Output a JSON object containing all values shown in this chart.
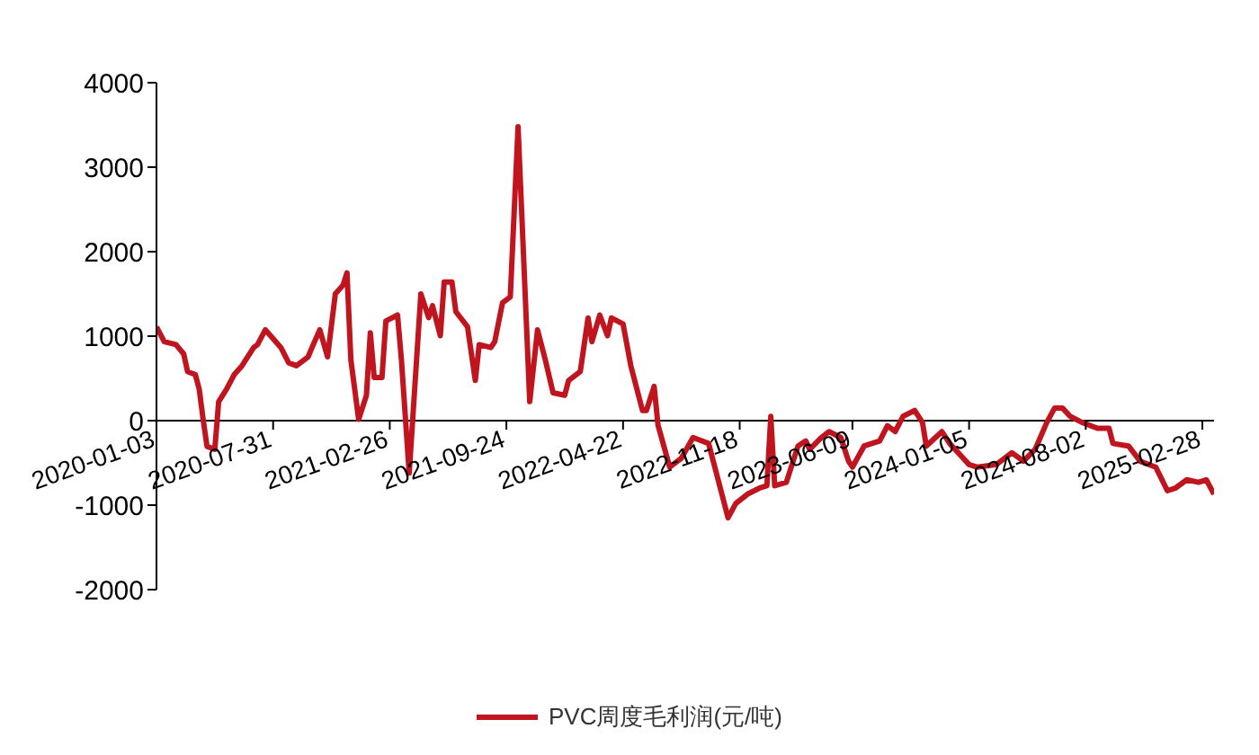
{
  "chart_data": {
    "type": "line",
    "x": [
      "2020-01-03",
      "2020-01-17",
      "2020-02-07",
      "2020-02-21",
      "2020-02-28",
      "2020-03-13",
      "2020-03-20",
      "2020-03-27",
      "2020-04-03",
      "2020-04-17",
      "2020-04-24",
      "2020-05-08",
      "2020-05-22",
      "2020-06-05",
      "2020-06-26",
      "2020-07-03",
      "2020-07-17",
      "2020-07-31",
      "2020-08-14",
      "2020-08-28",
      "2020-09-11",
      "2020-10-02",
      "2020-10-09",
      "2020-10-23",
      "2020-11-06",
      "2020-11-20",
      "2020-12-04",
      "2020-12-11",
      "2020-12-18",
      "2021-01-01",
      "2021-01-15",
      "2021-01-22",
      "2021-01-29",
      "2021-02-12",
      "2021-02-19",
      "2021-03-12",
      "2021-03-19",
      "2021-04-02",
      "2021-04-23",
      "2021-05-07",
      "2021-05-14",
      "2021-05-28",
      "2021-06-04",
      "2021-06-18",
      "2021-06-25",
      "2021-07-16",
      "2021-07-30",
      "2021-08-06",
      "2021-08-27",
      "2021-09-03",
      "2021-09-17",
      "2021-10-01",
      "2021-10-15",
      "2021-11-05",
      "2021-11-19",
      "2021-12-03",
      "2021-12-17",
      "2022-01-07",
      "2022-01-14",
      "2022-02-04",
      "2022-02-18",
      "2022-02-25",
      "2022-03-11",
      "2022-03-25",
      "2022-04-01",
      "2022-04-22",
      "2022-05-06",
      "2022-05-27",
      "2022-06-03",
      "2022-06-17",
      "2022-06-24",
      "2022-07-15",
      "2022-08-05",
      "2022-08-26",
      "2022-09-23",
      "2022-10-07",
      "2022-10-28",
      "2022-11-11",
      "2022-12-02",
      "2022-12-23",
      "2023-01-06",
      "2023-01-13",
      "2023-01-20",
      "2023-02-10",
      "2023-03-03",
      "2023-03-17",
      "2023-03-24",
      "2023-04-14",
      "2023-04-28",
      "2023-05-19",
      "2023-06-02",
      "2023-06-09",
      "2023-06-30",
      "2023-07-28",
      "2023-08-11",
      "2023-08-25",
      "2023-09-08",
      "2023-09-29",
      "2023-10-13",
      "2023-10-20",
      "2023-11-17",
      "2023-12-01",
      "2024-01-05",
      "2024-01-19",
      "2024-02-23",
      "2024-03-22",
      "2024-04-12",
      "2024-05-03",
      "2024-05-24",
      "2024-06-07",
      "2024-06-21",
      "2024-07-05",
      "2024-07-26",
      "2024-08-23",
      "2024-09-13",
      "2024-09-20",
      "2024-10-18",
      "2024-11-08",
      "2024-12-06",
      "2024-12-27",
      "2025-01-10",
      "2025-01-31",
      "2025-02-21",
      "2025-03-07",
      "2025-03-21"
    ],
    "series": [
      {
        "name": "PVC周度毛利润(元/吨)",
        "color": "#c0141e",
        "values": [
          1110,
          935,
          900,
          790,
          580,
          545,
          370,
          15,
          -305,
          -340,
          225,
          370,
          545,
          650,
          865,
          900,
          1075,
          970,
          865,
          685,
          650,
          755,
          865,
          1075,
          755,
          1500,
          1605,
          1750,
          720,
          15,
          300,
          1040,
          510,
          510,
          1180,
          1250,
          720,
          -620,
          1500,
          1220,
          1360,
          1005,
          1640,
          1640,
          1290,
          1110,
          475,
          900,
          865,
          935,
          1395,
          1465,
          3480,
          225,
          1075,
          720,
          330,
          300,
          475,
          580,
          1215,
          935,
          1250,
          1005,
          1215,
          1145,
          650,
          120,
          120,
          405,
          -55,
          -550,
          -445,
          -200,
          -270,
          -620,
          -1150,
          -980,
          -870,
          -800,
          -770,
          50,
          -770,
          -730,
          -300,
          -240,
          -340,
          -200,
          -130,
          -200,
          -480,
          -550,
          -300,
          -240,
          -60,
          -130,
          50,
          120,
          -20,
          -300,
          -130,
          -270,
          -520,
          -550,
          -520,
          -380,
          -480,
          -340,
          -20,
          150,
          150,
          50,
          -20,
          -90,
          -90,
          -270,
          -300,
          -480,
          -550,
          -830,
          -800,
          -700,
          -730,
          -700,
          -870
        ]
      }
    ],
    "xlim": [
      "2020-01-03",
      "2025-03-21"
    ],
    "xticks": [
      "2020-01-03",
      "2020-07-31",
      "2021-02-26",
      "2021-09-24",
      "2022-04-22",
      "2022-11-18",
      "2023-06-09",
      "2024-01-05",
      "2024-08-02",
      "2025-02-28"
    ],
    "ylim": [
      -2000,
      4000
    ],
    "yticks": [
      -2000,
      -1000,
      0,
      1000,
      2000,
      3000,
      4000
    ],
    "grid": false,
    "legend": "bottom",
    "marker": "none",
    "line_style": "solid"
  }
}
